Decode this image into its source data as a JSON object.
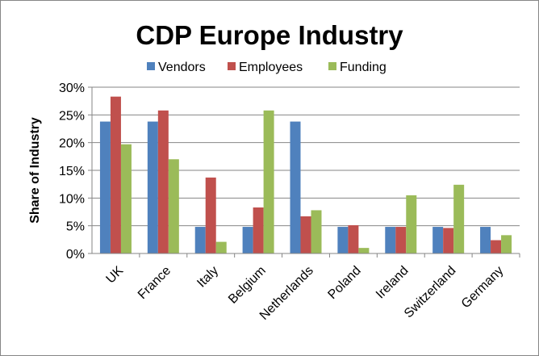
{
  "chart_data": {
    "type": "bar",
    "title": "CDP Europe Industry",
    "xlabel": "",
    "ylabel": "Share of Industry",
    "ylim": [
      0,
      30
    ],
    "yticks": [
      "0%",
      "5%",
      "10%",
      "15%",
      "20%",
      "25%",
      "30%"
    ],
    "grid": true,
    "legend": "top",
    "categories": [
      "UK",
      "France",
      "Italy",
      "Belgium",
      "Netherlands",
      "Poland",
      "Ireland",
      "Switzerland",
      "Germany"
    ],
    "series": [
      {
        "name": "Vendors",
        "color": "#4F81BD",
        "values": [
          23.8,
          23.8,
          4.8,
          4.8,
          23.8,
          4.8,
          4.8,
          4.8,
          4.8
        ]
      },
      {
        "name": "Employees",
        "color": "#C0504D",
        "values": [
          28.3,
          25.8,
          13.7,
          8.3,
          6.7,
          5.1,
          4.8,
          4.6,
          2.4
        ]
      },
      {
        "name": "Funding",
        "color": "#9BBB59",
        "values": [
          19.7,
          17.0,
          2.1,
          25.8,
          7.8,
          1.0,
          10.5,
          12.4,
          3.3
        ]
      }
    ]
  }
}
